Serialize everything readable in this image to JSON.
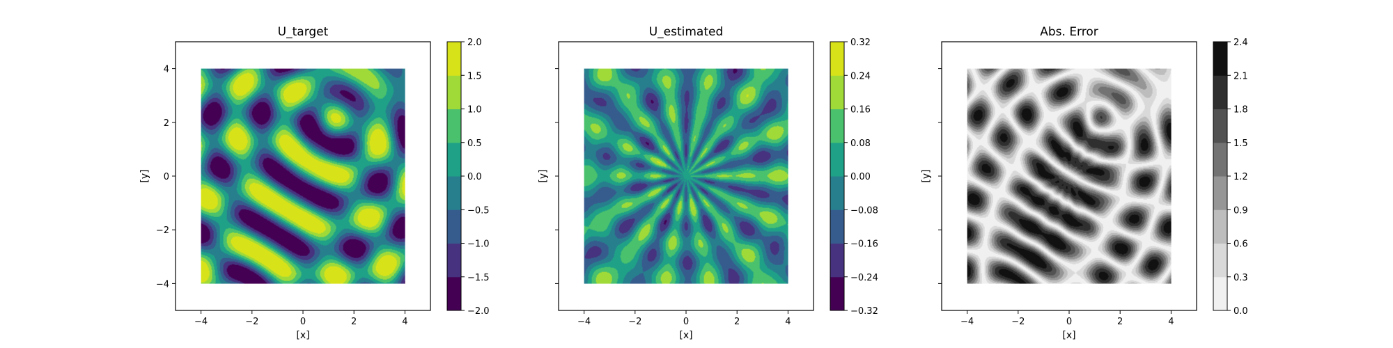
{
  "chart_data": [
    {
      "type": "heatmap",
      "title": "U_target",
      "xlabel": "[x]",
      "ylabel": "[y]",
      "xlim": [
        -5,
        5
      ],
      "ylim": [
        -5,
        5
      ],
      "data_extent": [
        -4,
        4,
        -4,
        4
      ],
      "x_ticks": [
        "−4",
        "−2",
        "0",
        "2",
        "4"
      ],
      "y_ticks": [
        "−4",
        "−2",
        "0",
        "2",
        "4"
      ],
      "show_ytick_labels": true,
      "colormap": "viridis",
      "color_levels": [
        -2.0,
        -1.5,
        -1.0,
        -0.5,
        0.0,
        0.5,
        1.0,
        1.5,
        2.0
      ],
      "colorbar_ticks": [
        "−2.0",
        "−1.5",
        "−1.0",
        "−0.5",
        "0.0",
        "0.5",
        "1.0",
        "1.5",
        "2.0"
      ],
      "pattern": "interference of two circular waves centered near (1.2, 2.0) and (-2.5, -4.5)"
    },
    {
      "type": "heatmap",
      "title": "U_estimated",
      "xlabel": "[x]",
      "ylabel": "[y]",
      "xlim": [
        -5,
        5
      ],
      "ylim": [
        -5,
        5
      ],
      "data_extent": [
        -4,
        4,
        -4,
        4
      ],
      "x_ticks": [
        "−4",
        "−2",
        "0",
        "2",
        "4"
      ],
      "y_ticks": [],
      "show_ytick_labels": false,
      "colormap": "viridis",
      "color_levels": [
        -0.32,
        -0.24,
        -0.16,
        -0.08,
        0.0,
        0.08,
        0.16,
        0.24,
        0.32
      ],
      "colorbar_ticks": [
        "−0.32",
        "−0.24",
        "−0.16",
        "−0.08",
        "0.00",
        "0.08",
        "0.16",
        "0.24",
        "0.32"
      ],
      "pattern": "radial spokes emanating from the origin"
    },
    {
      "type": "heatmap",
      "title": "Abs. Error",
      "xlabel": "[x]",
      "ylabel": "[y]",
      "xlim": [
        -5,
        5
      ],
      "ylim": [
        -5,
        5
      ],
      "data_extent": [
        -4,
        4,
        -4,
        4
      ],
      "x_ticks": [
        "−4",
        "−2",
        "0",
        "2",
        "4"
      ],
      "y_ticks": [],
      "show_ytick_labels": false,
      "colormap": "greys",
      "color_levels": [
        0.0,
        0.3,
        0.6,
        0.9,
        1.2,
        1.5,
        1.8,
        2.1,
        2.4
      ],
      "colorbar_ticks": [
        "0.0",
        "0.3",
        "0.6",
        "0.9",
        "1.2",
        "1.5",
        "1.8",
        "2.1",
        "2.4"
      ],
      "pattern": "absolute difference between U_target and U_estimated"
    }
  ],
  "colors": {
    "viridis": [
      "#440154",
      "#46327e",
      "#365c8d",
      "#277f8e",
      "#1fa187",
      "#4ac16d",
      "#a0da39",
      "#d8e219"
    ],
    "greys": [
      "#f0f0f0",
      "#d9d9d9",
      "#bdbdbd",
      "#969696",
      "#737373",
      "#525252",
      "#2f2f2f",
      "#111111"
    ]
  }
}
